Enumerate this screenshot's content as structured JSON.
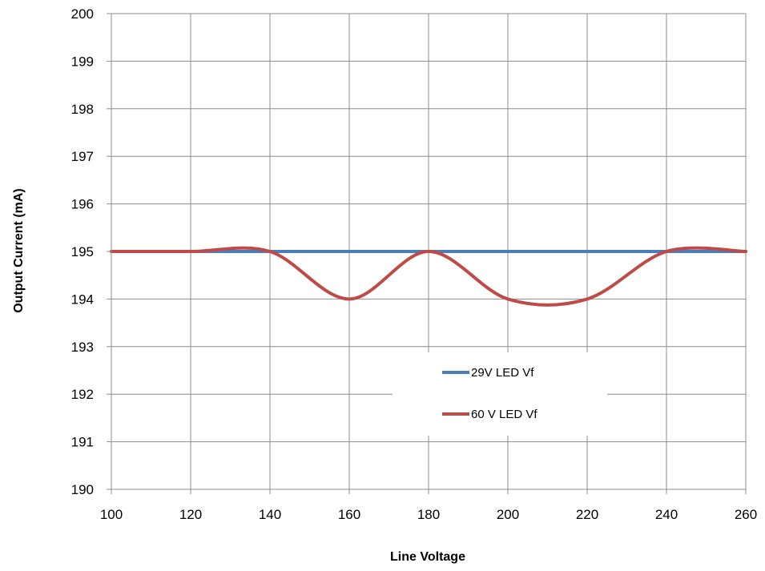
{
  "chart_data": {
    "type": "line",
    "title": "",
    "xlabel": "Line Voltage",
    "ylabel": "Output Current (mA)",
    "xlim": [
      100,
      260
    ],
    "ylim": [
      190,
      200
    ],
    "x_ticks": [
      100,
      120,
      140,
      160,
      180,
      200,
      220,
      240,
      260
    ],
    "y_ticks": [
      190,
      191,
      192,
      193,
      194,
      195,
      196,
      197,
      198,
      199,
      200
    ],
    "grid": true,
    "legend_position": "lower-right",
    "x": [
      100,
      120,
      140,
      160,
      180,
      200,
      220,
      240,
      260
    ],
    "series": [
      {
        "name": "29V LED Vf",
        "color": "#4a7ebb",
        "values": [
          195,
          195,
          195,
          195,
          195,
          195,
          195,
          195,
          195
        ]
      },
      {
        "name": "60 V LED Vf",
        "color": "#be4b48",
        "values": [
          195,
          195,
          195,
          194,
          195,
          194,
          194,
          195,
          195
        ]
      }
    ]
  }
}
